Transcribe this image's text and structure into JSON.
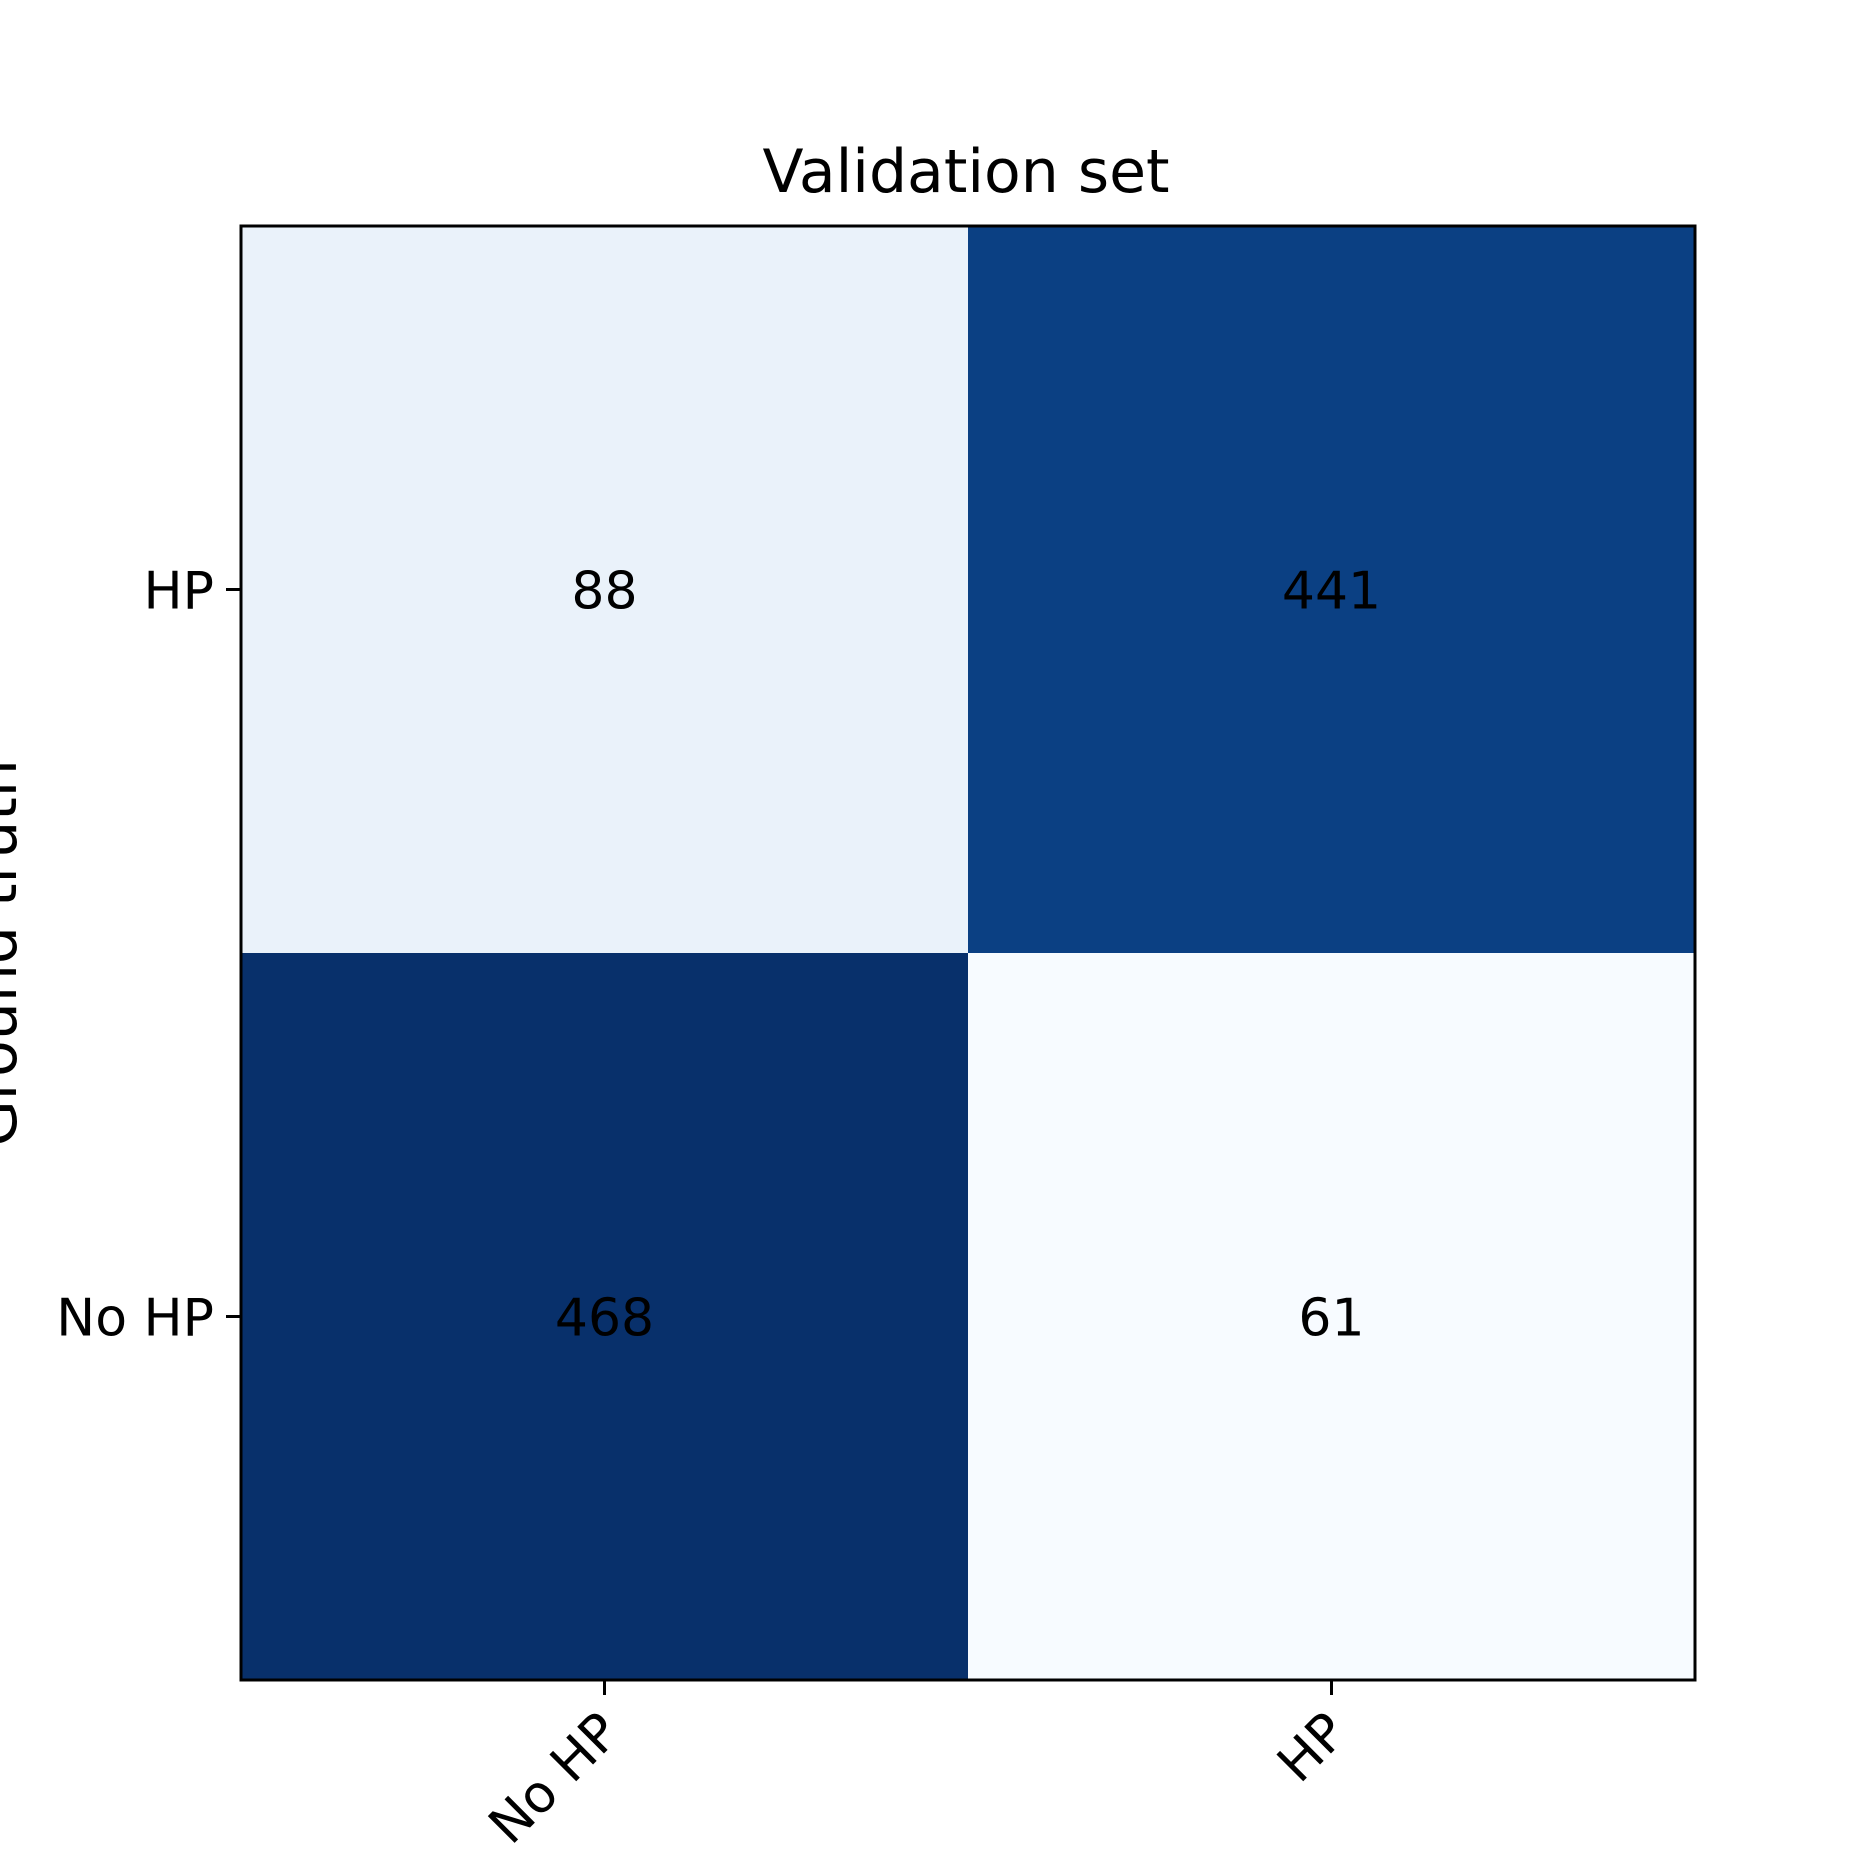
{
  "chart_data": {
    "type": "heatmap",
    "title": "Validation set",
    "ylabel": "Ground truth",
    "xlabel": "",
    "x_categories": [
      "No HP",
      "HP"
    ],
    "y_categories_top_to_bottom": [
      "HP",
      "No HP"
    ],
    "matrix_rows_top_to_bottom": [
      [
        88,
        441
      ],
      [
        468,
        61
      ]
    ],
    "colormap": "Blues",
    "colors": {
      "88": "#eaf2fa",
      "441": "#0b4083",
      "468": "#08306b",
      "61": "#f7fbff",
      "annotation_text": "#000000",
      "axes": "#000000"
    }
  }
}
